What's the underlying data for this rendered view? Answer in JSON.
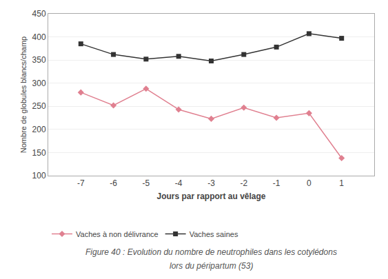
{
  "chart_data": {
    "type": "line",
    "x": [
      -7,
      -6,
      -5,
      -4,
      -3,
      -2,
      -1,
      0,
      1
    ],
    "series": [
      {
        "name": "Vaches à non délivrance",
        "color": "#e08090",
        "marker": "diamond",
        "values": [
          280,
          252,
          288,
          243,
          223,
          247,
          225,
          235,
          138
        ]
      },
      {
        "name": "Vaches saines",
        "color": "#333333",
        "marker": "square",
        "values": [
          385,
          362,
          352,
          358,
          348,
          362,
          378,
          407,
          397
        ]
      }
    ],
    "xlabel": "Jours par rapport au vêlage",
    "ylabel": "Nombre de globules blancs/champ",
    "xlim": [
      -8,
      2
    ],
    "xticks": [
      -7,
      -6,
      -5,
      -4,
      -3,
      -2,
      -1,
      0,
      1
    ],
    "ylim": [
      100,
      450
    ],
    "yticks": [
      100,
      150,
      200,
      250,
      300,
      350,
      400,
      450
    ],
    "grid": true,
    "legend": "bottom",
    "annotations": [
      "Figure 40 : Evolution du nombre de neutrophiles dans les cotylédons",
      "lors du péripartum (53)"
    ]
  }
}
